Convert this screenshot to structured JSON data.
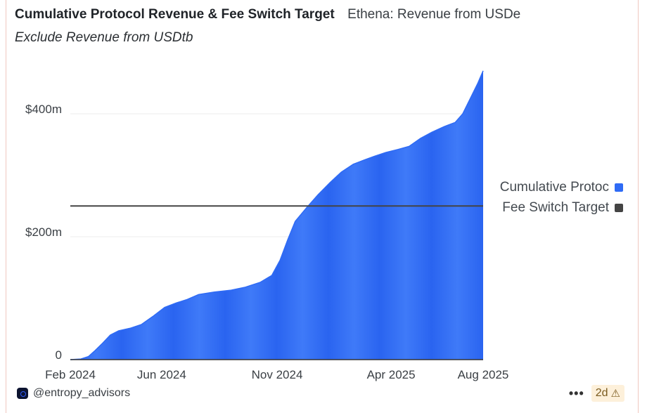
{
  "header": {
    "title": "Cumulative Protocol Revenue & Fee Switch Target",
    "subtitle_inline": "Ethena: Revenue from USDe",
    "subtitle": "Exclude Revenue from USDtb"
  },
  "colors": {
    "revenue": "#2f6bf5",
    "target": "#444444",
    "grid": "#ececec",
    "axis": "#333333"
  },
  "chart_data": {
    "type": "area",
    "title": "Cumulative Protocol Revenue & Fee Switch Target",
    "xlabel": "",
    "ylabel": "",
    "x_range": [
      "2024-02-01",
      "2025-08-01"
    ],
    "ylim": [
      0,
      400
    ],
    "y_unit": "m",
    "y_ticks": [
      0,
      200,
      400
    ],
    "y_tick_labels": [
      "0",
      "$200m",
      "$400m"
    ],
    "x_ticks": [
      {
        "date": "2024-02-01",
        "label": "Feb 2024"
      },
      {
        "date": "2024-06-01",
        "label": "Jun 2024"
      },
      {
        "date": "2024-11-01",
        "label": "Nov 2024"
      },
      {
        "date": "2025-04-01",
        "label": "Apr 2025"
      },
      {
        "date": "2025-08-01",
        "label": "Aug 2025"
      }
    ],
    "series": [
      {
        "name": "Cumulative Protocol Revenue",
        "legend_label": "Cumulative Protoc",
        "type": "area",
        "points": [
          [
            "2024-02-01",
            0
          ],
          [
            "2024-02-15",
            1
          ],
          [
            "2024-02-25",
            5
          ],
          [
            "2024-03-05",
            15
          ],
          [
            "2024-03-15",
            27
          ],
          [
            "2024-03-25",
            40
          ],
          [
            "2024-04-05",
            47
          ],
          [
            "2024-04-20",
            51
          ],
          [
            "2024-05-05",
            57
          ],
          [
            "2024-05-20",
            70
          ],
          [
            "2024-06-05",
            85
          ],
          [
            "2024-06-20",
            92
          ],
          [
            "2024-07-05",
            98
          ],
          [
            "2024-07-20",
            106
          ],
          [
            "2024-08-10",
            110
          ],
          [
            "2024-09-01",
            113
          ],
          [
            "2024-09-20",
            118
          ],
          [
            "2024-10-10",
            126
          ],
          [
            "2024-10-25",
            137
          ],
          [
            "2024-11-05",
            162
          ],
          [
            "2024-11-15",
            195
          ],
          [
            "2024-11-25",
            225
          ],
          [
            "2024-12-10",
            247
          ],
          [
            "2024-12-25",
            268
          ],
          [
            "2025-01-10",
            288
          ],
          [
            "2025-01-25",
            305
          ],
          [
            "2025-02-10",
            318
          ],
          [
            "2025-02-25",
            325
          ],
          [
            "2025-03-10",
            331
          ],
          [
            "2025-03-25",
            337
          ],
          [
            "2025-04-10",
            342
          ],
          [
            "2025-04-25",
            347
          ],
          [
            "2025-05-10",
            360
          ],
          [
            "2025-05-25",
            370
          ],
          [
            "2025-06-10",
            379
          ],
          [
            "2025-06-25",
            386
          ],
          [
            "2025-07-05",
            400
          ],
          [
            "2025-07-15",
            425
          ],
          [
            "2025-07-25",
            450
          ],
          [
            "2025-08-01",
            470
          ]
        ]
      },
      {
        "name": "Fee Switch Target",
        "legend_label": "Fee Switch Target",
        "type": "line",
        "value": 250
      }
    ],
    "legend_position": "right",
    "grid": true
  },
  "footer": {
    "handle": "@entropy_advisors",
    "menu": "•••",
    "age": "2d"
  }
}
